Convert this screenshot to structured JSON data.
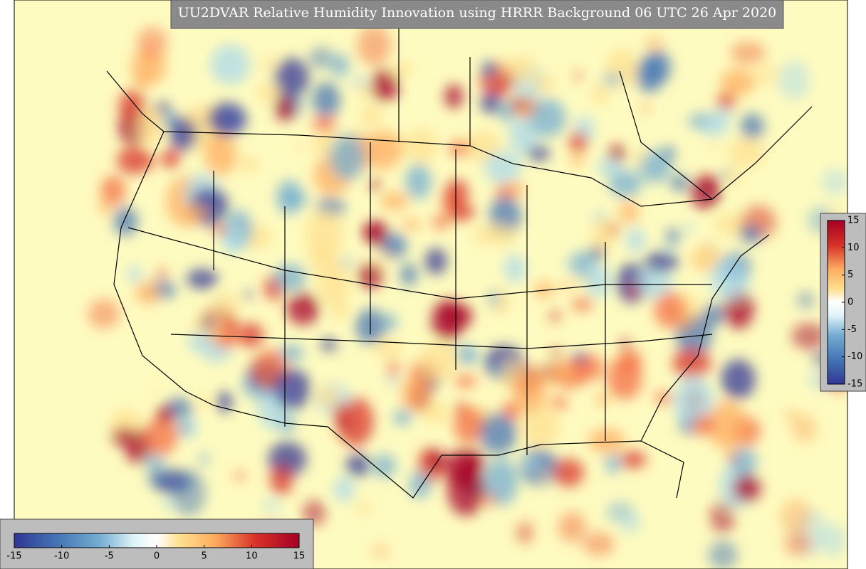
{
  "title": "UU2DVAR Relative Humidity Innovation using HRRR Background 06 UTC 26 Apr 2020",
  "horizontal_colorbar": {
    "lim": [
      -15,
      15
    ],
    "ticks": [
      -15,
      -10,
      -5,
      0,
      5,
      10,
      15
    ]
  },
  "vertical_colorbar": {
    "lim": [
      -15,
      15
    ],
    "ticks": [
      -15,
      -10,
      -5,
      0,
      5,
      10,
      15
    ]
  }
}
